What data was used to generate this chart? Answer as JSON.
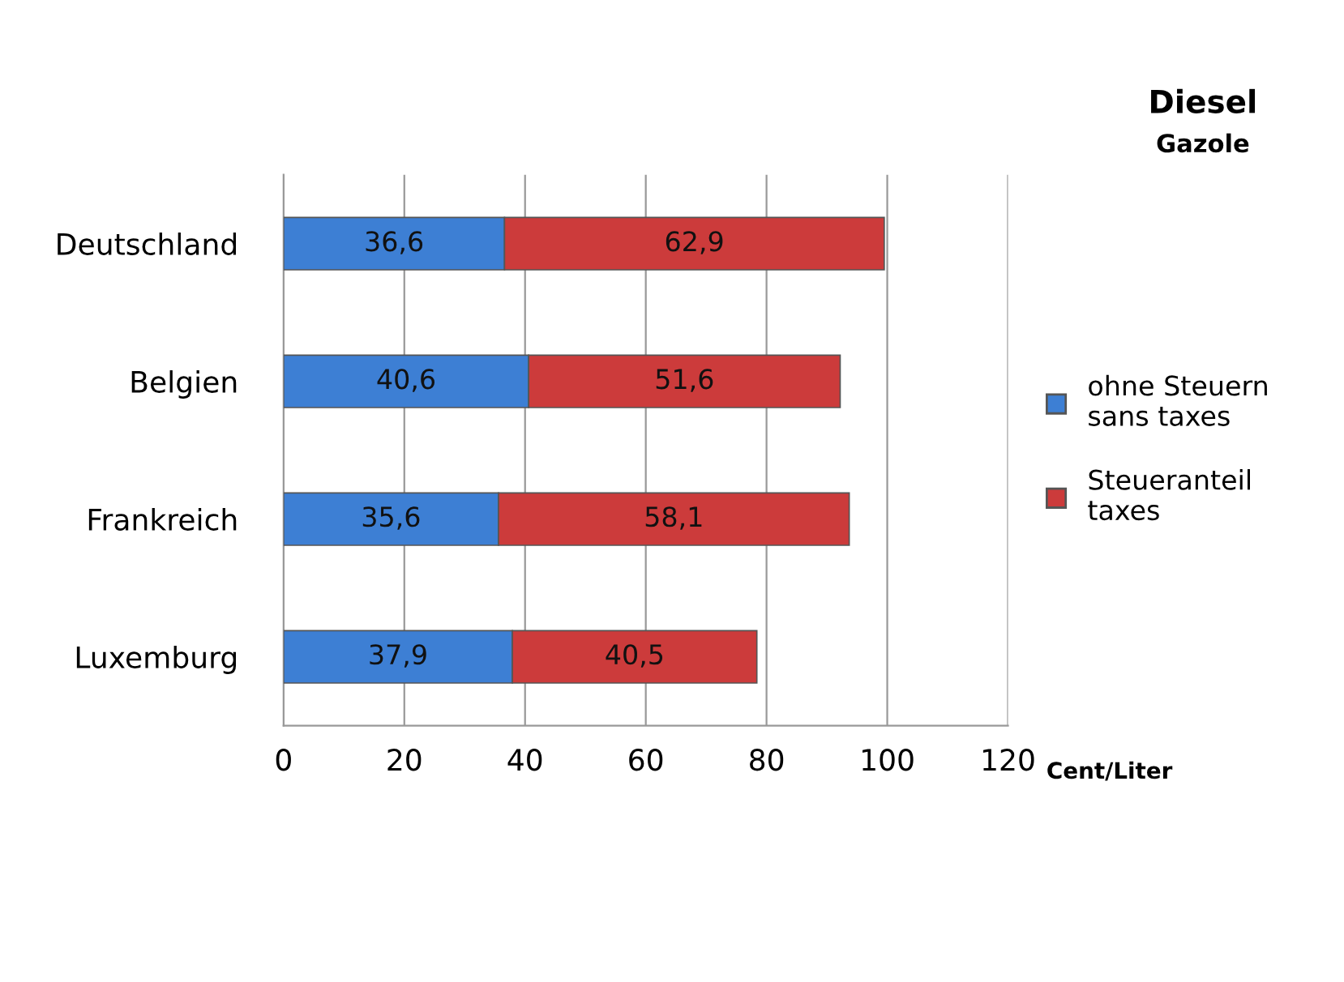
{
  "chart_data": {
    "type": "bar",
    "orientation": "horizontal",
    "stacked": true,
    "title": "Diesel",
    "subtitle": "Gazole",
    "xlabel": "Cent/Liter",
    "categories": [
      "Deutschland",
      "Belgien",
      "Frankreich",
      "Luxemburg"
    ],
    "series": [
      {
        "name": "ohne Steuern\nsans taxes",
        "color": "#3d7fd4",
        "values": [
          36.6,
          40.6,
          35.6,
          37.9
        ],
        "value_labels": [
          "36,6",
          "40,6",
          "35,6",
          "37,9"
        ]
      },
      {
        "name": "Steueranteil\ntaxes",
        "color": "#cc3b3b",
        "values": [
          62.9,
          51.6,
          58.1,
          40.5
        ],
        "value_labels": [
          "62,9",
          "51,6",
          "58,1",
          "40,5"
        ]
      }
    ],
    "xlim": [
      0,
      120
    ],
    "xticks": [
      0,
      20,
      40,
      60,
      80,
      100,
      120
    ],
    "grid": "x",
    "legend": "right"
  }
}
